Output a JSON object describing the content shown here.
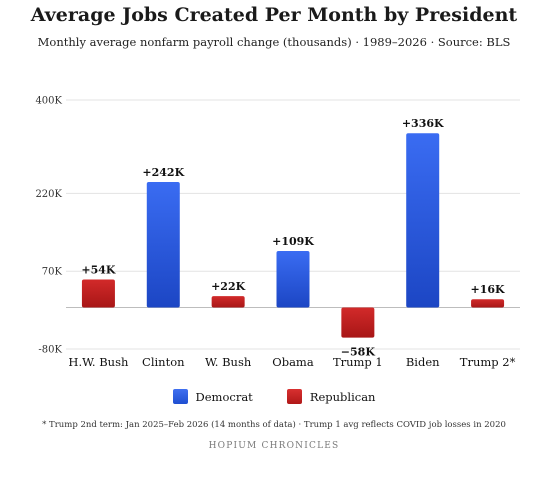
{
  "chart_data": {
    "type": "bar",
    "title": "Average Jobs Created Per Month by President",
    "subtitle": "Monthly average nonfarm payroll change (thousands) · 1989–2026 · Source: BLS",
    "categories": [
      "H.W. Bush",
      "Clinton",
      "W. Bush",
      "Obama",
      "Trump 1",
      "Biden",
      "Trump 2*"
    ],
    "values": [
      54,
      242,
      22,
      109,
      -58,
      336,
      16
    ],
    "data_labels": [
      "+54K",
      "+242K",
      "+22K",
      "+109K",
      "−58K",
      "+336K",
      "+16K"
    ],
    "party": [
      "Republican",
      "Democrat",
      "Republican",
      "Democrat",
      "Republican",
      "Democrat",
      "Republican"
    ],
    "ylim": [
      -80,
      400
    ],
    "yticks": [
      -80,
      70,
      220,
      400
    ],
    "ytick_labels": [
      "-80K",
      "70K",
      "220K",
      "400K"
    ],
    "grid": true,
    "legend": [
      {
        "name": "Democrat",
        "color": "#1f4fd1"
      },
      {
        "name": "Republican",
        "color": "#c01c1c"
      }
    ],
    "legend_position": "bottom"
  },
  "footnote": "* Trump 2nd term: Jan 2025–Feb 2026 (14 months of data) · Trump 1 avg reflects COVID job losses in 2020",
  "brand": "HOPIUM CHRONICLES"
}
